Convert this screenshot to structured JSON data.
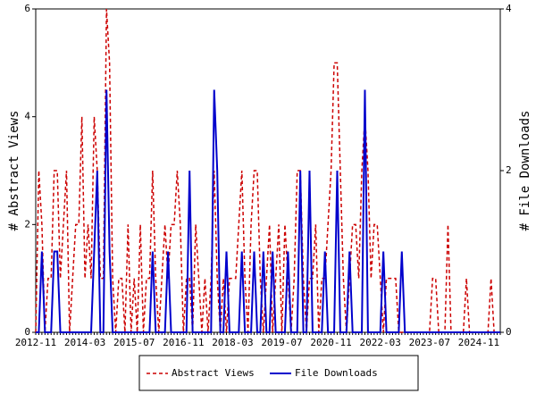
{
  "chart_data": {
    "type": "line",
    "y_label": "# Abstract Views",
    "y2_label": "# File Downloads",
    "categories": [
      "2012-11",
      null,
      null,
      null,
      null,
      null,
      null,
      null,
      null,
      null,
      null,
      null,
      null,
      null,
      null,
      null,
      "2014-03",
      null,
      null,
      null,
      null,
      null,
      null,
      null,
      null,
      null,
      null,
      null,
      null,
      null,
      null,
      null,
      "2015-07",
      null,
      null,
      null,
      null,
      null,
      null,
      null,
      null,
      null,
      null,
      null,
      null,
      null,
      null,
      null,
      "2016-11",
      null,
      null,
      null,
      null,
      null,
      null,
      null,
      null,
      null,
      null,
      null,
      null,
      null,
      null,
      null,
      "2018-03",
      null,
      null,
      null,
      null,
      null,
      null,
      null,
      null,
      null,
      null,
      null,
      null,
      null,
      null,
      null,
      "2019-07",
      null,
      null,
      null,
      null,
      null,
      null,
      null,
      null,
      null,
      null,
      null,
      null,
      null,
      null,
      null,
      "2020-11",
      null,
      null,
      null,
      null,
      null,
      null,
      null,
      null,
      null,
      null,
      null,
      null,
      null,
      null,
      null,
      "2022-03",
      null,
      null,
      null,
      null,
      null,
      null,
      null,
      null,
      null,
      null,
      null,
      null,
      null,
      null,
      null,
      "2023-07",
      null,
      null,
      null,
      null,
      null,
      null,
      null,
      null,
      null,
      null,
      null,
      null,
      null,
      null,
      null,
      "2024-11",
      null,
      null,
      null,
      null,
      null,
      null,
      null
    ],
    "series": [
      {
        "name": "Abstract Views",
        "color": "#cc0000",
        "dash": true,
        "values": [
          0,
          3,
          2,
          0,
          1,
          1,
          3,
          3,
          1,
          2,
          3,
          0,
          1,
          2,
          2,
          4,
          1,
          2,
          1,
          4,
          3,
          1,
          1,
          6,
          5,
          1,
          0,
          1,
          1,
          0,
          2,
          0,
          1,
          0,
          2,
          0,
          1,
          1,
          3,
          1,
          0,
          1,
          2,
          1,
          2,
          2,
          3,
          2,
          0,
          1,
          1,
          0,
          2,
          1,
          0,
          1,
          0,
          1,
          3,
          1,
          0,
          1,
          0,
          1,
          1,
          1,
          2,
          3,
          1,
          0,
          2,
          3,
          3,
          1,
          0,
          1,
          2,
          0,
          1,
          2,
          0,
          2,
          1,
          0,
          1,
          3,
          3,
          1,
          0,
          1,
          1,
          2,
          0,
          1,
          1,
          2,
          3,
          5,
          5,
          3,
          1,
          0,
          1,
          2,
          2,
          1,
          3,
          4,
          3,
          1,
          2,
          2,
          1,
          0,
          1,
          1,
          1,
          1,
          0,
          0,
          0,
          0,
          0,
          0,
          0,
          0,
          0,
          0,
          0,
          1,
          1,
          0,
          0,
          0,
          2,
          0,
          0,
          0,
          0,
          0,
          1,
          0,
          0,
          0,
          0,
          0,
          0,
          0,
          1,
          0,
          0,
          0
        ]
      },
      {
        "name": "File Downloads",
        "color": "#0000cc",
        "dash": false,
        "axis": "y2",
        "values": [
          0,
          0,
          1,
          0,
          0,
          0,
          1,
          1,
          0,
          0,
          0,
          0,
          0,
          0,
          0,
          0,
          0,
          0,
          0,
          1,
          2,
          0,
          0,
          3,
          1,
          0,
          0,
          0,
          0,
          0,
          0,
          0,
          0,
          0,
          0,
          0,
          0,
          0,
          1,
          0,
          0,
          0,
          0,
          1,
          0,
          0,
          0,
          0,
          0,
          0,
          2,
          0,
          0,
          0,
          0,
          0,
          0,
          0,
          3,
          2,
          0,
          0,
          1,
          0,
          0,
          0,
          0,
          1,
          0,
          0,
          0,
          1,
          0,
          0,
          1,
          0,
          0,
          1,
          0,
          0,
          0,
          0,
          1,
          0,
          0,
          0,
          2,
          0,
          0,
          2,
          0,
          0,
          0,
          0,
          1,
          0,
          0,
          0,
          2,
          0,
          0,
          0,
          1,
          0,
          0,
          0,
          0,
          3,
          0,
          0,
          0,
          0,
          0,
          1,
          0,
          0,
          0,
          0,
          0,
          1,
          0,
          0,
          0,
          0,
          0,
          0,
          0,
          0,
          0,
          0,
          0,
          0,
          0,
          0,
          0,
          0,
          0,
          0,
          0,
          0,
          0,
          0,
          0,
          0,
          0,
          0,
          0,
          0,
          0,
          0,
          0,
          0
        ]
      }
    ],
    "ylim": [
      0,
      6
    ],
    "yticks": [
      0,
      2,
      4,
      6
    ],
    "y2lim": [
      0,
      4
    ],
    "y2ticks": [
      0,
      2,
      4
    ],
    "legend": "bottom"
  }
}
